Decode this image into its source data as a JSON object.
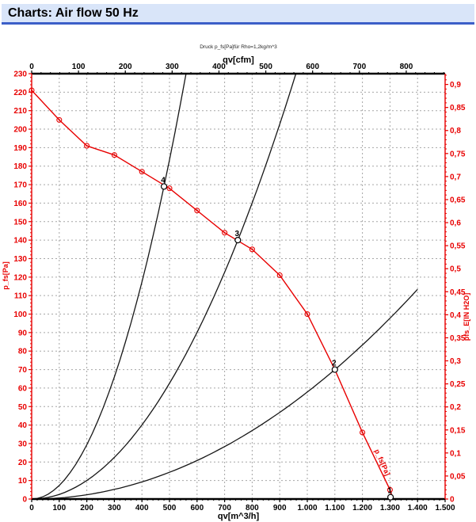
{
  "header": {
    "title": "Charts: Air flow 50 Hz"
  },
  "colors": {
    "accent_banner_bg": "#d9e5f9",
    "accent_banner_border": "#3c5fc8",
    "axis_red": "#e80000",
    "axis_black": "#000000",
    "curve_black": "#161616",
    "grid_gray": "#a6a6a6"
  },
  "chart_data": {
    "type": "line",
    "note": "Druck p_fs[Pa]für Rho=1,2kg/m^3",
    "axes": {
      "top": {
        "label": "qv[cfm]",
        "min": 0,
        "max": 883,
        "major_values": [
          0,
          100,
          200,
          300,
          400,
          500,
          600,
          700,
          800
        ],
        "major_labels": [
          "0",
          "100",
          "200",
          "300",
          "400",
          "500",
          "600",
          "700",
          "800"
        ],
        "minor_step": 20
      },
      "bottom": {
        "label": "qv[m^3/h]",
        "min": 0,
        "max": 1500,
        "major_values": [
          0,
          100,
          200,
          300,
          400,
          500,
          600,
          700,
          800,
          900,
          1000,
          1100,
          1200,
          1300,
          1400,
          1500
        ],
        "major_labels": [
          "0",
          "100",
          "200",
          "300",
          "400",
          "500",
          "600",
          "700",
          "800",
          "900",
          "1.000",
          "1.100",
          "1.200",
          "1.300",
          "1.400",
          "1.500"
        ],
        "minor_step": 20
      },
      "left": {
        "label": "p_fs[Pa]",
        "min": 0,
        "max": 230,
        "major_values": [
          0,
          10,
          20,
          30,
          40,
          50,
          60,
          70,
          80,
          90,
          100,
          110,
          120,
          130,
          140,
          150,
          160,
          170,
          180,
          190,
          200,
          210,
          220,
          230
        ],
        "major_labels": [
          "0",
          "10",
          "20",
          "30",
          "40",
          "50",
          "60",
          "70",
          "80",
          "90",
          "100",
          "110",
          "120",
          "130",
          "140",
          "150",
          "160",
          "170",
          "180",
          "190",
          "200",
          "210",
          "220",
          "230"
        ],
        "minor_step": 2
      },
      "right": {
        "label": "pfs_E[IN H2O]",
        "min": 0,
        "max": 0.92,
        "major_values": [
          0,
          0.05,
          0.1,
          0.15,
          0.2,
          0.25,
          0.3,
          0.35,
          0.4,
          0.45,
          0.5,
          0.55,
          0.6,
          0.65,
          0.7,
          0.75,
          0.8,
          0.85,
          0.9
        ],
        "major_labels": [
          "0",
          "0,05",
          "0,1",
          "0,15",
          "0,2",
          "0,25",
          "0,3",
          "0,35",
          "0,4",
          "0,45",
          "0,5",
          "0,55",
          "0,6",
          "0,65",
          "0,7",
          "0,75",
          "0,8",
          "0,85",
          "0,9"
        ],
        "minor_step": 0.01,
        "pa_per_unit": 249.089
      }
    },
    "grid": {
      "h_step_pa": 10,
      "v_step_m3h": 100,
      "style": "dashed"
    },
    "fan_curve": {
      "name": "p_fs[Pa]",
      "curve_label": "p_fs[Pa]",
      "points": [
        [
          0,
          221
        ],
        [
          100,
          205
        ],
        [
          200,
          191
        ],
        [
          300,
          186
        ],
        [
          400,
          177
        ],
        [
          500,
          168
        ],
        [
          600,
          156
        ],
        [
          700,
          144
        ],
        [
          800,
          135
        ],
        [
          900,
          121
        ],
        [
          1000,
          100
        ],
        [
          1100,
          70
        ],
        [
          1200,
          36
        ],
        [
          1300,
          5
        ]
      ],
      "end": [
        1310,
        0
      ]
    },
    "system_curves": [
      {
        "through_point": "4",
        "q": 480,
        "p": 169,
        "q_end": null
      },
      {
        "through_point": "3",
        "q": 748,
        "p": 140,
        "q_end": null
      },
      {
        "through_point": "2",
        "q": 1100,
        "p": 70,
        "q_end": 1400
      }
    ],
    "operating_points": [
      {
        "label": "1",
        "q": 1302,
        "p": 1
      },
      {
        "label": "2",
        "q": 1100,
        "p": 70
      },
      {
        "label": "3",
        "q": 748,
        "p": 140
      },
      {
        "label": "4",
        "q": 480,
        "p": 169
      }
    ],
    "ylim_pa": [
      0,
      230
    ],
    "xlim_m3h": [
      0,
      1500
    ],
    "legend_position": "none"
  }
}
